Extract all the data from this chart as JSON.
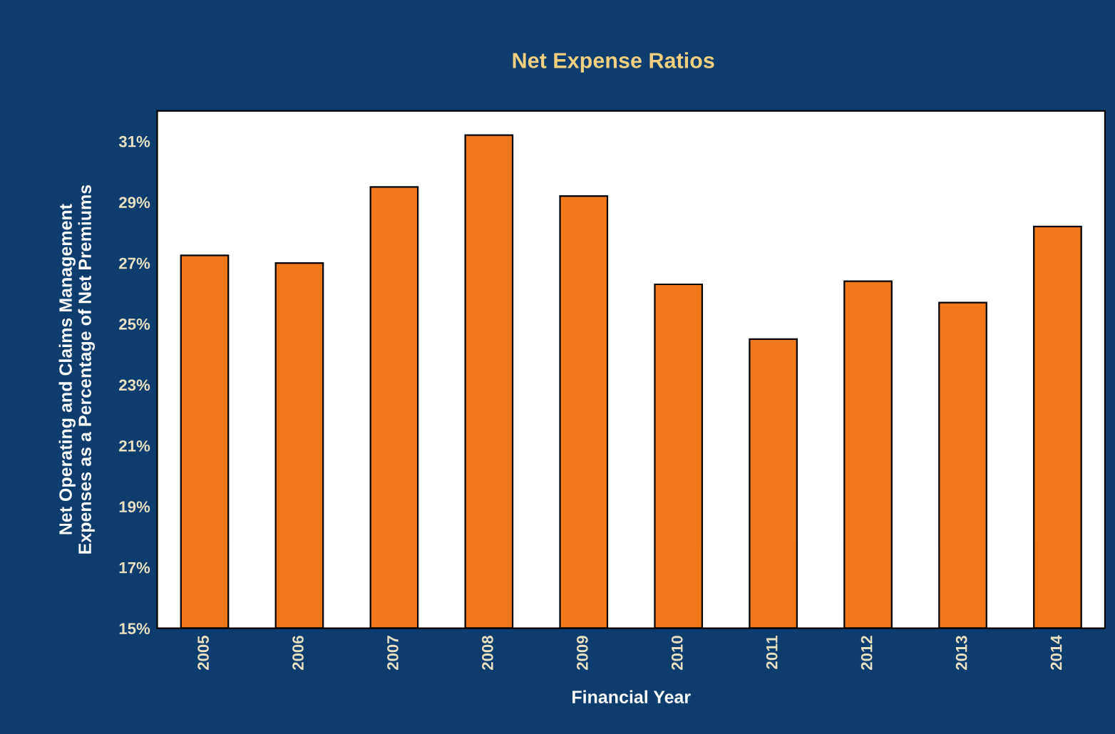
{
  "chart_data": {
    "type": "bar",
    "title": "Net Expense Ratios",
    "xlabel": "Financial Year",
    "ylabel": "Net Operating and Claims Management\nExpenses as a Percentage of Net Premiums",
    "categories": [
      "2005",
      "2006",
      "2007",
      "2008",
      "2009",
      "2010",
      "2011",
      "2012",
      "2013",
      "2014"
    ],
    "values": [
      27.25,
      27.0,
      29.5,
      31.2,
      29.2,
      26.3,
      24.5,
      26.4,
      25.7,
      28.2
    ],
    "color": "#f07818",
    "ylim": [
      15,
      32
    ],
    "yticks": [
      {
        "value": 15,
        "label": "15%"
      },
      {
        "value": 17,
        "label": "17%"
      },
      {
        "value": 19,
        "label": "19%"
      },
      {
        "value": 21,
        "label": "21%"
      },
      {
        "value": 23,
        "label": "23%"
      },
      {
        "value": 25,
        "label": "25%"
      },
      {
        "value": 27,
        "label": "27%"
      },
      {
        "value": 29,
        "label": "29%"
      },
      {
        "value": 31,
        "label": "31%"
      }
    ],
    "grid": false,
    "legend": false
  }
}
